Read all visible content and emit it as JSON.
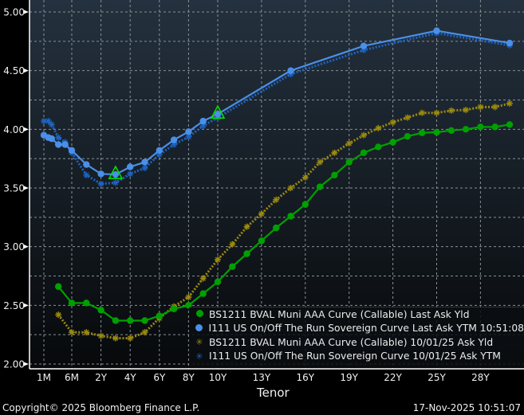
{
  "chart_data": {
    "type": "line",
    "title": "",
    "xlabel": "Tenor",
    "ylabel": "",
    "ylim": [
      2.0,
      5.0
    ],
    "yticks": [
      "5.00",
      "4.50",
      "4.00",
      "3.50",
      "3.00",
      "2.50",
      "2.00"
    ],
    "ytick_values": [
      5.0,
      4.5,
      4.0,
      3.5,
      3.0,
      2.5,
      2.0
    ],
    "xticks": [
      {
        "label": "1M",
        "t": 0.0833
      },
      {
        "label": "6M",
        "t": 0.5
      },
      {
        "label": "2Y",
        "t": 2
      },
      {
        "label": "4Y",
        "t": 4
      },
      {
        "label": "6Y",
        "t": 6
      },
      {
        "label": "8Y",
        "t": 8
      },
      {
        "label": "10Y",
        "t": 10
      },
      {
        "label": "13Y",
        "t": 13
      },
      {
        "label": "16Y",
        "t": 16
      },
      {
        "label": "19Y",
        "t": 19
      },
      {
        "label": "22Y",
        "t": 22
      },
      {
        "label": "25Y",
        "t": 25
      },
      {
        "label": "28Y",
        "t": 28
      }
    ],
    "grid": true,
    "legend_position": "bottom-right",
    "series": [
      {
        "name": "BS1211 BVAL Muni AAA Curve (Callable) Last Ask Yld",
        "color": "#00a000",
        "style": "solid",
        "marker": "circle",
        "x": [
          0.3,
          0.5,
          1,
          2,
          3,
          4,
          5,
          6,
          7,
          8,
          9,
          10,
          11,
          12,
          13,
          14,
          15,
          16,
          17,
          18,
          19,
          20,
          21,
          22,
          23,
          24,
          25,
          26,
          27,
          28,
          29,
          30
        ],
        "y": [
          2.66,
          2.52,
          2.52,
          2.46,
          2.37,
          2.37,
          2.37,
          2.41,
          2.47,
          2.5,
          2.6,
          2.7,
          2.83,
          2.94,
          3.05,
          3.16,
          3.26,
          3.36,
          3.51,
          3.61,
          3.72,
          3.8,
          3.85,
          3.89,
          3.94,
          3.97,
          3.975,
          3.99,
          4.0,
          4.02,
          4.02,
          4.04
        ]
      },
      {
        "name": "I111 US On/Off The Run Sovereign Curve Last Ask YTM 10:51:08",
        "color": "#4a8fe8",
        "style": "solid",
        "marker": "circle",
        "x": [
          0.0833,
          0.15,
          0.2,
          0.3,
          0.4,
          0.5,
          1,
          2,
          3,
          4,
          5,
          6,
          7,
          8,
          9,
          10,
          15,
          20,
          25,
          30
        ],
        "y": [
          3.95,
          3.93,
          3.92,
          3.87,
          3.87,
          3.82,
          3.7,
          3.62,
          3.615,
          3.68,
          3.72,
          3.82,
          3.91,
          3.98,
          4.07,
          4.13,
          4.5,
          4.71,
          4.84,
          4.735
        ]
      },
      {
        "name": "BS1211 BVAL Muni AAA Curve (Callable) 10/01/25 Ask Yld",
        "color": "#9a8a10",
        "style": "dotted",
        "marker": "asterisk",
        "x": [
          0.3,
          0.5,
          1,
          2,
          3,
          4,
          5,
          6,
          7,
          8,
          9,
          10,
          11,
          12,
          13,
          14,
          15,
          16,
          17,
          18,
          19,
          20,
          21,
          22,
          23,
          24,
          25,
          26,
          27,
          28,
          29,
          30
        ],
        "y": [
          2.42,
          2.27,
          2.27,
          2.24,
          2.22,
          2.22,
          2.27,
          2.39,
          2.49,
          2.57,
          2.73,
          2.89,
          3.02,
          3.17,
          3.28,
          3.4,
          3.5,
          3.59,
          3.72,
          3.8,
          3.88,
          3.95,
          4.01,
          4.06,
          4.1,
          4.14,
          4.14,
          4.16,
          4.165,
          4.19,
          4.19,
          4.22
        ]
      },
      {
        "name": "I111 US On/Off The Run Sovereign Curve 10/01/25 Ask YTM",
        "color": "#1e64c0",
        "style": "dotted",
        "marker": "asterisk",
        "x": [
          0.0833,
          0.15,
          0.2,
          0.3,
          0.4,
          0.5,
          1,
          2,
          3,
          4,
          5,
          6,
          7,
          8,
          9,
          10,
          15,
          20,
          25,
          30
        ],
        "y": [
          4.07,
          4.07,
          4.04,
          3.93,
          3.89,
          3.8,
          3.61,
          3.535,
          3.545,
          3.62,
          3.67,
          3.785,
          3.87,
          3.935,
          4.03,
          4.1,
          4.47,
          4.675,
          4.82,
          4.715
        ]
      }
    ],
    "annotations": [
      {
        "type": "triangle-marker",
        "color": "#00e000",
        "x": 3,
        "y": 3.615
      },
      {
        "type": "triangle-marker",
        "color": "#00e000",
        "x": 10,
        "y": 4.13
      }
    ]
  },
  "legend": [
    "BS1211 BVAL Muni AAA Curve (Callable) Last Ask Yld",
    "I111 US On/Off The Run Sovereign Curve Last Ask YTM 10:51:08",
    "BS1211 BVAL Muni AAA Curve (Callable) 10/01/25 Ask Yld",
    "I111 US On/Off The Run Sovereign Curve 10/01/25 Ask YTM"
  ],
  "footer": {
    "copyright": "Copyright© 2025 Bloomberg Finance L.P.",
    "timestamp": "17-Nov-2025 10:51:07"
  }
}
